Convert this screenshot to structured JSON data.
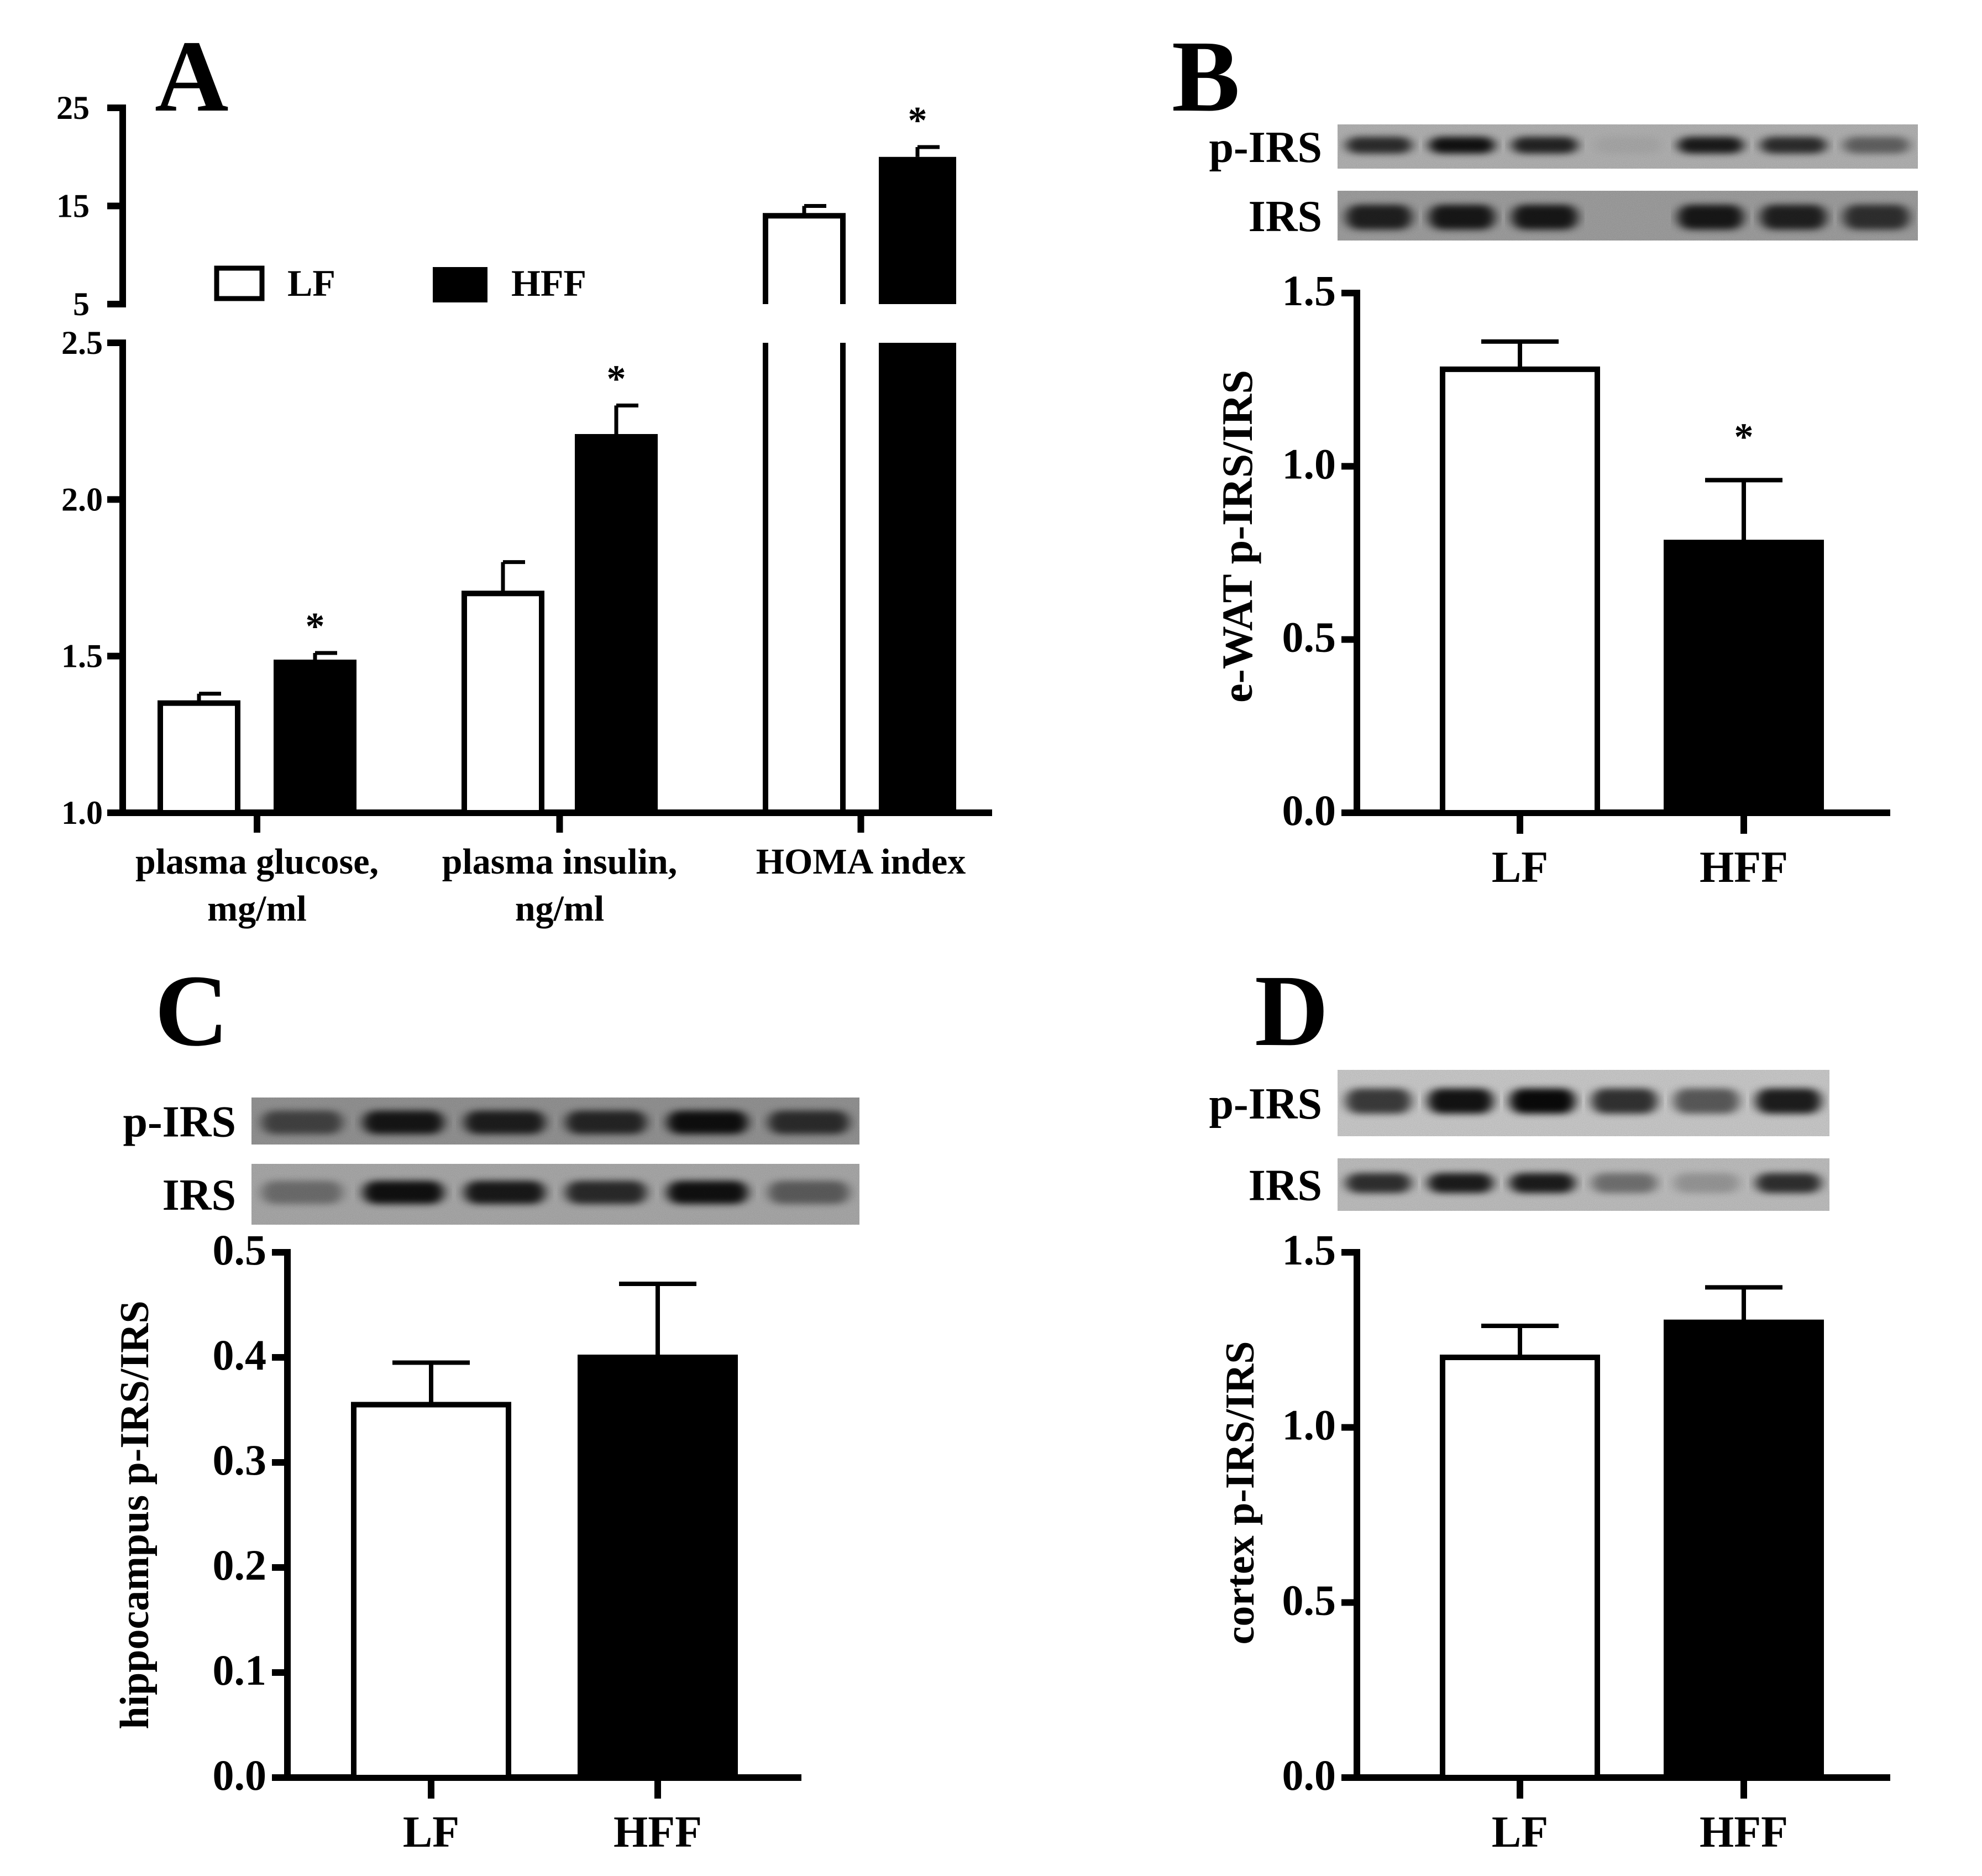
{
  "colors": {
    "LF": "#ffffff",
    "HFF": "#000000",
    "axis": "#000000"
  },
  "chart_data": [
    {
      "panel": "A",
      "type": "bar",
      "title": "",
      "xlabel": "",
      "ylabel": "",
      "categories": [
        "plasma glucose,\nmg/ml",
        "plasma insulin,\nng/ml",
        "HOMA index"
      ],
      "series": [
        {
          "name": "LF",
          "values": [
            1.35,
            1.7,
            14.0
          ],
          "errors": [
            0.03,
            0.1,
            1.0
          ]
        },
        {
          "name": "HFF",
          "values": [
            1.48,
            2.2,
            20.0
          ],
          "errors": [
            0.03,
            0.1,
            1.0
          ]
        }
      ],
      "significance": [
        "*",
        "*",
        "*"
      ],
      "y_axis_break": true,
      "ylim_lower": [
        1.0,
        2.5
      ],
      "ylim_upper": [
        5,
        25
      ],
      "yticks_lower": [
        "1.0",
        "1.5",
        "2.0",
        "2.5"
      ],
      "yticks_upper": [
        "5",
        "15",
        "25"
      ],
      "legend": [
        "LF",
        "HFF"
      ],
      "legend_position": "upper-left"
    },
    {
      "panel": "B",
      "type": "bar",
      "title": "",
      "xlabel": "",
      "ylabel": "e-WAT p-IRS/IRS",
      "categories": [
        "LF",
        "HFF"
      ],
      "values": [
        1.28,
        0.78
      ],
      "errors": [
        0.08,
        0.18
      ],
      "significance": [
        "",
        "*"
      ],
      "ylim": [
        0,
        1.5
      ],
      "yticks": [
        "0.0",
        "0.5",
        "1.0",
        "1.5"
      ],
      "blot_labels": [
        "p-IRS",
        "IRS"
      ]
    },
    {
      "panel": "C",
      "type": "bar",
      "title": "",
      "xlabel": "",
      "ylabel": "hippocampus p-IRS/IRS",
      "categories": [
        "LF",
        "HFF"
      ],
      "values": [
        0.355,
        0.4
      ],
      "errors": [
        0.04,
        0.07
      ],
      "significance": [
        "",
        ""
      ],
      "ylim": [
        0,
        0.5
      ],
      "yticks": [
        "0.0",
        "0.1",
        "0.2",
        "0.3",
        "0.4",
        "0.5"
      ],
      "blot_labels": [
        "p-IRS",
        "IRS"
      ]
    },
    {
      "panel": "D",
      "type": "bar",
      "title": "",
      "xlabel": "",
      "ylabel": "cortex p-IRS/IRS",
      "categories": [
        "LF",
        "HFF"
      ],
      "values": [
        1.2,
        1.3
      ],
      "errors": [
        0.09,
        0.1
      ],
      "significance": [
        "",
        ""
      ],
      "ylim": [
        0,
        1.5
      ],
      "yticks": [
        "0.0",
        "0.5",
        "1.0",
        "1.5"
      ],
      "blot_labels": [
        "p-IRS",
        "IRS"
      ]
    }
  ]
}
